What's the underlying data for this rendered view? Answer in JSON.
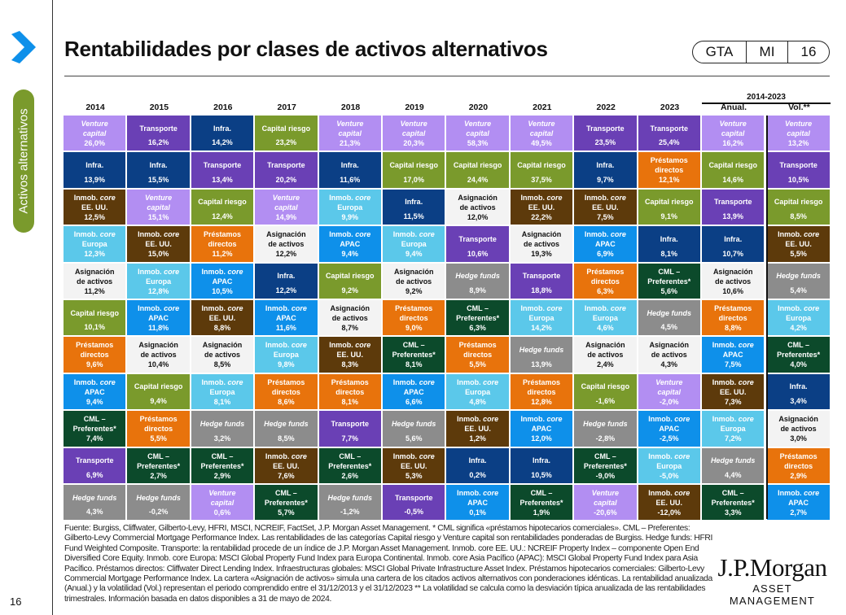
{
  "page": {
    "title": "Rentabilidades por clases de activos alternativos",
    "section_tab": "Activos alternativos",
    "page_number": "16",
    "accent": "#0d8fe8"
  },
  "badge": {
    "a": "GTA",
    "b": "MI",
    "c": "16"
  },
  "table": {
    "period": "2014-2023",
    "columns": [
      "2014",
      "2015",
      "2016",
      "2017",
      "2018",
      "2019",
      "2020",
      "2021",
      "2022",
      "2023",
      "Anual.",
      "Vol.**"
    ],
    "categories": {
      "vc": {
        "lines": [
          "Venture",
          "capital"
        ],
        "color": "#b28ef2",
        "text": "#fff",
        "italic": true
      },
      "tr": {
        "lines": [
          "Transporte"
        ],
        "color": "#6a40b5",
        "text": "#fff"
      },
      "infra": {
        "lines": [
          "Infra."
        ],
        "color": "#0b3f85",
        "text": "#fff"
      },
      "cr": {
        "lines": [
          "Capital riesgo"
        ],
        "color": "#7a9a2c",
        "text": "#fff"
      },
      "usa": {
        "lines": [
          "Inmob. core",
          "EE. UU."
        ],
        "color": "#5d3a0b",
        "text": "#fff"
      },
      "eur": {
        "lines": [
          "Inmob. core",
          "Europa"
        ],
        "color": "#5bc8ea",
        "text": "#fff"
      },
      "apac": {
        "lines": [
          "Inmob. core",
          "APAC"
        ],
        "color": "#0e90ea",
        "text": "#fff"
      },
      "pd": {
        "lines": [
          "Préstamos",
          "directos"
        ],
        "color": "#e8730c",
        "text": "#fff"
      },
      "asig": {
        "lines": [
          "Asignación",
          "de activos"
        ],
        "color": "#f3f3f3",
        "text": "#111"
      },
      "hf": {
        "lines": [
          "Hedge funds"
        ],
        "color": "#8c8c8c",
        "text": "#fff",
        "italic": true
      },
      "cml": {
        "lines": [
          "CML –",
          "Preferentes*"
        ],
        "color": "#0c4a2b",
        "text": "#fff"
      }
    },
    "data": [
      [
        [
          "vc",
          "26,0%"
        ],
        [
          "infra",
          "13,9%"
        ],
        [
          "usa",
          "12,5%"
        ],
        [
          "eur",
          "12,3%"
        ],
        [
          "asig",
          "11,2%"
        ],
        [
          "cr",
          "10,1%"
        ],
        [
          "pd",
          "9,6%"
        ],
        [
          "apac",
          "9,4%"
        ],
        [
          "cml",
          "7,4%"
        ],
        [
          "tr",
          "6,9%"
        ],
        [
          "hf",
          "4,3%"
        ]
      ],
      [
        [
          "tr",
          "16,2%"
        ],
        [
          "infra",
          "15,5%"
        ],
        [
          "vc",
          "15,1%"
        ],
        [
          "usa",
          "15,0%"
        ],
        [
          "eur",
          "12,8%"
        ],
        [
          "apac",
          "11,8%"
        ],
        [
          "asig",
          "10,4%"
        ],
        [
          "cr",
          "9,4%"
        ],
        [
          "pd",
          "5,5%"
        ],
        [
          "cml",
          "2,7%"
        ],
        [
          "hf",
          "-0,2%"
        ]
      ],
      [
        [
          "infra",
          "14,2%"
        ],
        [
          "tr",
          "13,4%"
        ],
        [
          "cr",
          "12,4%"
        ],
        [
          "pd",
          "11,2%"
        ],
        [
          "apac",
          "10,5%"
        ],
        [
          "usa",
          "8,8%"
        ],
        [
          "asig",
          "8,5%"
        ],
        [
          "eur",
          "8,1%"
        ],
        [
          "hf",
          "3,2%"
        ],
        [
          "cml",
          "2,9%"
        ],
        [
          "vc",
          "0,6%"
        ]
      ],
      [
        [
          "cr",
          "23,2%"
        ],
        [
          "tr",
          "20,2%"
        ],
        [
          "vc",
          "14,9%"
        ],
        [
          "asig",
          "12,2%"
        ],
        [
          "infra",
          "12,2%"
        ],
        [
          "apac",
          "11,6%"
        ],
        [
          "eur",
          "9,8%"
        ],
        [
          "pd",
          "8,6%"
        ],
        [
          "hf",
          "8,5%"
        ],
        [
          "usa",
          "7,6%"
        ],
        [
          "cml",
          "5,7%"
        ]
      ],
      [
        [
          "vc",
          "21,3%"
        ],
        [
          "infra",
          "11,6%"
        ],
        [
          "eur",
          "9,9%"
        ],
        [
          "apac",
          "9,4%"
        ],
        [
          "cr",
          "9,2%"
        ],
        [
          "asig",
          "8,7%"
        ],
        [
          "usa",
          "8,3%"
        ],
        [
          "pd",
          "8,1%"
        ],
        [
          "tr",
          "7,7%"
        ],
        [
          "cml",
          "2,6%"
        ],
        [
          "hf",
          "-1,2%"
        ]
      ],
      [
        [
          "vc",
          "20,3%"
        ],
        [
          "cr",
          "17,0%"
        ],
        [
          "infra",
          "11,5%"
        ],
        [
          "eur",
          "9,4%"
        ],
        [
          "asig",
          "9,2%"
        ],
        [
          "pd",
          "9,0%"
        ],
        [
          "cml",
          "8,1%"
        ],
        [
          "apac",
          "6,6%"
        ],
        [
          "hf",
          "5,6%"
        ],
        [
          "usa",
          "5,3%"
        ],
        [
          "tr",
          "-0,5%"
        ]
      ],
      [
        [
          "vc",
          "58,3%"
        ],
        [
          "cr",
          "24,4%"
        ],
        [
          "asig",
          "12,0%"
        ],
        [
          "tr",
          "10,6%"
        ],
        [
          "hf",
          "8,9%"
        ],
        [
          "cml",
          "6,3%"
        ],
        [
          "pd",
          "5,5%"
        ],
        [
          "eur",
          "4,8%"
        ],
        [
          "usa",
          "1,2%"
        ],
        [
          "infra",
          "0,2%"
        ],
        [
          "apac",
          "0,1%"
        ]
      ],
      [
        [
          "vc",
          "49,5%"
        ],
        [
          "cr",
          "37,5%"
        ],
        [
          "usa",
          "22,2%"
        ],
        [
          "asig",
          "19,3%"
        ],
        [
          "tr",
          "18,8%"
        ],
        [
          "eur",
          "14,2%"
        ],
        [
          "hf",
          "13,9%"
        ],
        [
          "pd",
          "12,8%"
        ],
        [
          "apac",
          "12,0%"
        ],
        [
          "infra",
          "10,5%"
        ],
        [
          "cml",
          "1,9%"
        ]
      ],
      [
        [
          "tr",
          "23,5%"
        ],
        [
          "infra",
          "9,7%"
        ],
        [
          "usa",
          "7,5%"
        ],
        [
          "apac",
          "6,9%"
        ],
        [
          "pd",
          "6,3%"
        ],
        [
          "eur",
          "4,6%"
        ],
        [
          "asig",
          "2,4%"
        ],
        [
          "cr",
          "-1,6%"
        ],
        [
          "hf",
          "-2,8%"
        ],
        [
          "cml",
          "-9,0%"
        ],
        [
          "vc",
          "-20,6%"
        ]
      ],
      [
        [
          "tr",
          "25,4%"
        ],
        [
          "pd",
          "12,1%"
        ],
        [
          "cr",
          "9,1%"
        ],
        [
          "infra",
          "8,1%"
        ],
        [
          "cml",
          "5,6%"
        ],
        [
          "hf",
          "4,5%"
        ],
        [
          "asig",
          "4,3%"
        ],
        [
          "vc",
          "-2,0%"
        ],
        [
          "apac",
          "-2,5%"
        ],
        [
          "eur",
          "-5,0%"
        ],
        [
          "usa",
          "-12,0%"
        ]
      ],
      [
        [
          "vc",
          "16,2%"
        ],
        [
          "cr",
          "14,6%"
        ],
        [
          "tr",
          "13,9%"
        ],
        [
          "infra",
          "10,7%"
        ],
        [
          "asig",
          "10,6%"
        ],
        [
          "pd",
          "8,8%"
        ],
        [
          "apac",
          "7,5%"
        ],
        [
          "usa",
          "7,3%"
        ],
        [
          "eur",
          "7,2%"
        ],
        [
          "hf",
          "4,4%"
        ],
        [
          "cml",
          "3,3%"
        ]
      ],
      [
        [
          "vc",
          "13,2%"
        ],
        [
          "tr",
          "10,5%"
        ],
        [
          "cr",
          "8,5%"
        ],
        [
          "usa",
          "5,5%"
        ],
        [
          "hf",
          "5,4%"
        ],
        [
          "eur",
          "4,2%"
        ],
        [
          "cml",
          "4,0%"
        ],
        [
          "infra",
          "3,4%"
        ],
        [
          "asig",
          "3,0%"
        ],
        [
          "pd",
          "2,9%"
        ],
        [
          "apac",
          "2,7%"
        ]
      ]
    ]
  },
  "footnote": "Fuente: Burgiss, Cliffwater, Gilberto-Levy, HFRI, MSCI, NCREIF, FactSet, J.P. Morgan Asset Management. * CML significa «préstamos hipotecarios comerciales». CML – Preferentes: Gilberto-Levy Commercial Mortgage Performance Index. Las rentabilidades de las categorías Capital riesgo y Venture capital son rentabilidades ponderadas de Burgiss. Hedge funds: HFRI Fund Weighted Composite. Transporte: la rentabilidad procede de un índice de J.P. Morgan Asset Management. Inmob. core EE. UU.: NCREIF Property Index – componente Open End Diversified Core Equity. Inmob. core Europa: MSCI Global Property Fund Index para Europa Continental. Inmob. core Asia Pacífico (APAC): MSCI Global Property Fund Index para Asia Pacífico. Préstamos directos: Cliffwater Direct Lending Index. Infraestructuras globales: MSCI Global Private Infrastructure Asset Index. Préstamos hipotecarios comerciales: Gilberto-Levy Commercial Mortgage Performance Index. La cartera «Asignación de activos» simula una cartera de los citados activos alternativos con ponderaciones idénticas. La rentabilidad anualizada (Anual.) y la volatilidad (Vol.) representan el periodo comprendido entre el 31/12/2013 y el 31/12/2023 ** La volatilidad se calcula como la desviación típica anualizada de las rentabilidades trimestrales. Información basada en datos disponibles a 31 de mayo de 2024.",
  "logo": {
    "name": "J.P.Morgan",
    "sub": "ASSET MANAGEMENT"
  }
}
